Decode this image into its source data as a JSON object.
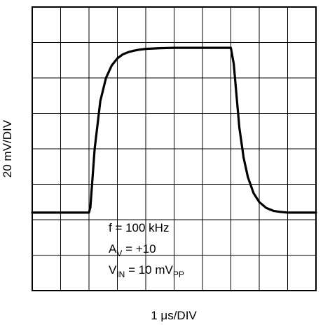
{
  "chart_data": {
    "type": "line",
    "xlabel": "1 μs/DIV",
    "ylabel": "20 mV/DIV",
    "divisions": {
      "x": 10,
      "y": 8
    },
    "xlim": [
      0,
      10
    ],
    "ylim": [
      0,
      8
    ],
    "grid": true,
    "series": [
      {
        "x": [
          0,
          1.0,
          2.0,
          2.05,
          2.2,
          2.4,
          2.6,
          2.8,
          3.0,
          3.2,
          3.4,
          3.6,
          3.8,
          4.0,
          4.5,
          5.0,
          6.0,
          7.0,
          7.1,
          7.2,
          7.3,
          7.45,
          7.6,
          7.8,
          8.0,
          8.25,
          8.5,
          8.75,
          9.0,
          9.5,
          10.0
        ],
        "y": [
          2.2,
          2.2,
          2.2,
          2.35,
          4.0,
          5.35,
          6.0,
          6.35,
          6.55,
          6.67,
          6.73,
          6.77,
          6.8,
          6.82,
          6.84,
          6.85,
          6.85,
          6.85,
          6.4,
          5.5,
          4.6,
          3.75,
          3.2,
          2.75,
          2.5,
          2.33,
          2.25,
          2.22,
          2.2,
          2.2,
          2.2
        ]
      }
    ],
    "annotations": [
      {
        "main": "f = 100 kHz",
        "sub": "",
        "tail": ""
      },
      {
        "main": "A",
        "sub": "V",
        "tail": " = +10"
      },
      {
        "main": "V",
        "sub": "IN",
        "tail": " = 10 mV",
        "sub2": "PP"
      }
    ]
  }
}
